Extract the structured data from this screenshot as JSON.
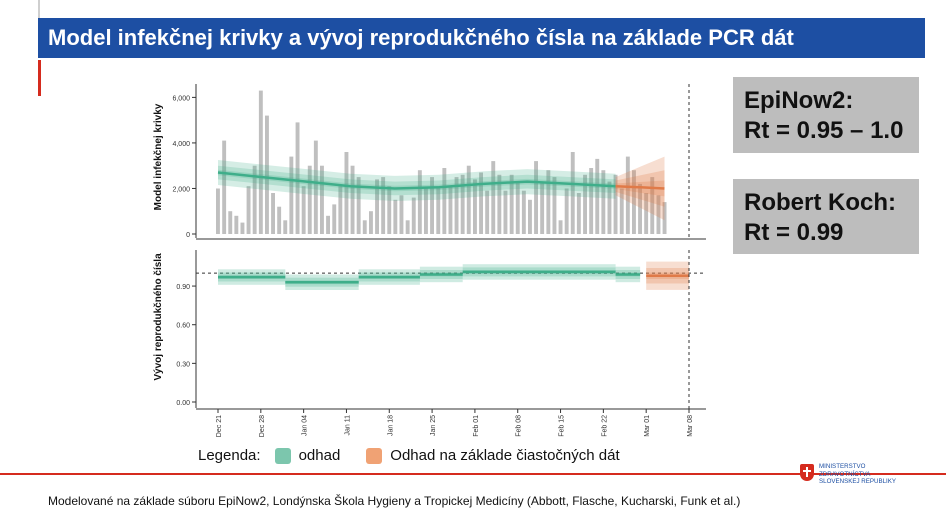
{
  "header": {
    "title": "Model infekčnej krivky a vývoj reprodukčného čísla na základe PCR dát"
  },
  "boxes": [
    {
      "line1": "EpiNow2:",
      "line2": "Rt = 0.95 – 1.0"
    },
    {
      "line1": "Robert Koch:",
      "line2": "Rt = 0.99"
    }
  ],
  "legend": {
    "title": "Legenda:",
    "items": [
      {
        "label": "odhad",
        "color": "#7cc6ad"
      },
      {
        "label": "Odhad na základe čiastočných dát",
        "color": "#f0a274"
      }
    ]
  },
  "footer": {
    "text": "Modelované na základe súboru EpiNow2, Londýnska Škola Hygieny a Tropickej Medicíny (Abbott, Flasche, Kucharski, Funk et al.)"
  },
  "logo": {
    "lines": [
      "MINISTERSTVO",
      "ZDRAVOTNÍCTVA",
      "SLOVENSKEJ REPUBLIKY"
    ]
  },
  "colors": {
    "estimate": "#3fae8a",
    "partial": "#e07a48",
    "bar": "#bfbfbf",
    "title_bg": "#1d4fa3",
    "accent_red": "#d52b1e"
  },
  "chart_data": [
    {
      "type": "bar",
      "ylabel": "Model infekčnej krivky",
      "yticks": [
        "0",
        "2,000",
        "4,000",
        "6,000"
      ],
      "ylim": [
        0,
        6500
      ],
      "x_start": "2020-12-21",
      "xticks": [
        "Dec 21",
        "Dec 28",
        "Jan 04",
        "Jan 11",
        "Jan 18",
        "Jan 25",
        "Feb 01",
        "Feb 08",
        "Feb 15",
        "Feb 22",
        "Mar 01",
        "Mar 08"
      ],
      "cases": [
        2000,
        4100,
        1000,
        800,
        500,
        2100,
        3000,
        6300,
        5200,
        1800,
        1200,
        600,
        3400,
        4900,
        2100,
        3000,
        4100,
        3000,
        800,
        1300,
        2100,
        3600,
        3000,
        2500,
        600,
        1000,
        2400,
        2500,
        2100,
        1500,
        1700,
        600,
        1600,
        2800,
        2000,
        2500,
        2100,
        2900,
        2100,
        2500,
        2600,
        3000,
        2400,
        2700,
        1900,
        3200,
        2600,
        1900,
        2600,
        2300,
        1900,
        1500,
        3200,
        2300,
        2800,
        2500,
        600,
        2000,
        3600,
        1800,
        2600,
        2900,
        3300,
        2800,
        2300,
        2600,
        2000,
        3400,
        2800,
        2200,
        1800,
        2500,
        1700,
        1400
      ],
      "estimate_series": {
        "name": "odhad",
        "x_range": [
          "2020-12-21",
          "2021-02-24"
        ],
        "median": [
          2700,
          2500,
          2300,
          2100,
          2000,
          2050,
          2200,
          2300,
          2200,
          2100
        ]
      },
      "partial_series": {
        "name": "Odhad na základe čiastočných dát",
        "x_range": [
          "2021-02-24",
          "2021-03-04"
        ],
        "median": [
          2100,
          2050,
          2000
        ]
      },
      "vline": "2021-03-08"
    },
    {
      "type": "line",
      "ylabel": "Vývoj reprodukčného čísla",
      "yticks": [
        "0.00",
        "0.30",
        "0.60",
        "0.90"
      ],
      "ylim": [
        0,
        1.18
      ],
      "hline": 1.0,
      "estimate_steps": [
        {
          "from": "2020-12-21",
          "to": "2021-01-01",
          "value": 0.97
        },
        {
          "from": "2021-01-01",
          "to": "2021-01-13",
          "value": 0.93
        },
        {
          "from": "2021-01-13",
          "to": "2021-01-23",
          "value": 0.97
        },
        {
          "from": "2021-01-23",
          "to": "2021-01-30",
          "value": 0.99
        },
        {
          "from": "2021-01-30",
          "to": "2021-02-24",
          "value": 1.01
        },
        {
          "from": "2021-02-24",
          "to": "2021-02-28",
          "value": 0.99
        }
      ],
      "partial_steps": [
        {
          "from": "2021-03-01",
          "to": "2021-03-08",
          "value": 0.98
        }
      ]
    }
  ]
}
